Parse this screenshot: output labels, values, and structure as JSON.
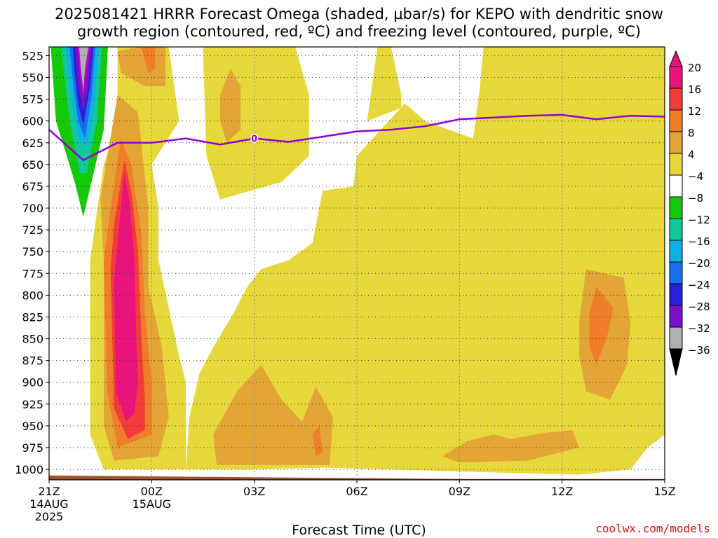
{
  "title_line1": "2025081421 HRRR Forecast Omega (shaded, μbar/s) for KEPO with dendritic snow",
  "title_line2": "growth region (contoured, red, ºC) and freezing level (contoured, purple, ºC)",
  "xlabel": "Forecast Time (UTC)",
  "credit": "coolwx.com/models",
  "colors": {
    "terrain": "#a0522d",
    "freezing_line": "#9400d3",
    "grid": "#555555"
  },
  "chart_data": {
    "type": "heatmap",
    "x_ticks": [
      {
        "hour": 0,
        "label": "21Z",
        "sub1": "14AUG",
        "sub2": "2025"
      },
      {
        "hour": 3,
        "label": "00Z",
        "sub1": "15AUG",
        "sub2": ""
      },
      {
        "hour": 6,
        "label": "03Z",
        "sub1": "",
        "sub2": ""
      },
      {
        "hour": 9,
        "label": "06Z",
        "sub1": "",
        "sub2": ""
      },
      {
        "hour": 12,
        "label": "09Z",
        "sub1": "",
        "sub2": ""
      },
      {
        "hour": 15,
        "label": "12Z",
        "sub1": "",
        "sub2": ""
      },
      {
        "hour": 18,
        "label": "15Z",
        "sub1": "",
        "sub2": ""
      }
    ],
    "xlim": [
      0,
      18
    ],
    "y_ticks": [
      525,
      550,
      575,
      600,
      625,
      650,
      675,
      700,
      725,
      750,
      775,
      800,
      825,
      850,
      875,
      900,
      925,
      950,
      975,
      1000
    ],
    "ylim": [
      515,
      1012
    ],
    "colorbar": [
      {
        "label": "20",
        "color": "#e8147c"
      },
      {
        "label": "16",
        "color": "#f23c3c"
      },
      {
        "label": "12",
        "color": "#f07d2a"
      },
      {
        "label": "8",
        "color": "#e3a535"
      },
      {
        "label": "4",
        "color": "#e6d83a"
      },
      {
        "label": "−4",
        "color": "#ffffff"
      },
      {
        "label": "−8",
        "color": "#14c80a"
      },
      {
        "label": "−12",
        "color": "#10c89a"
      },
      {
        "label": "−16",
        "color": "#10b0e6"
      },
      {
        "label": "−20",
        "color": "#1a6ef0"
      },
      {
        "label": "−24",
        "color": "#2a1fd8"
      },
      {
        "label": "−28",
        "color": "#7a10c8"
      },
      {
        "label": "−32",
        "color": "#b010c8"
      },
      {
        "label": "−36",
        "color": "#b0b0b0"
      }
    ],
    "freezing_level": {
      "label": "0",
      "points": [
        [
          0,
          610
        ],
        [
          1,
          645
        ],
        [
          2,
          625
        ],
        [
          3,
          625
        ],
        [
          4,
          620
        ],
        [
          5,
          627
        ],
        [
          6,
          620
        ],
        [
          7,
          624
        ],
        [
          8,
          618
        ],
        [
          9,
          612
        ],
        [
          10,
          610
        ],
        [
          11,
          606
        ],
        [
          12,
          598
        ],
        [
          13,
          596
        ],
        [
          14,
          594
        ],
        [
          15,
          593
        ],
        [
          16,
          598
        ],
        [
          17,
          594
        ],
        [
          18,
          595
        ]
      ]
    },
    "terrain": {
      "points": [
        [
          0,
          1007
        ],
        [
          3,
          1008
        ],
        [
          6,
          1009
        ],
        [
          9,
          1010
        ],
        [
          12,
          1011
        ],
        [
          15,
          1011
        ],
        [
          18,
          1011
        ]
      ]
    },
    "regions": [
      {
        "level": "4",
        "points": [
          [
            2,
            515
          ],
          [
            3.5,
            515
          ],
          [
            3.8,
            600
          ],
          [
            3.0,
            650
          ],
          [
            3.2,
            700
          ],
          [
            3.2,
            760
          ],
          [
            3.8,
            870
          ],
          [
            4.0,
            900
          ],
          [
            4.0,
            1000
          ],
          [
            1.6,
            1000
          ],
          [
            1.2,
            960
          ],
          [
            1.2,
            760
          ],
          [
            1.6,
            650
          ],
          [
            2.0,
            600
          ]
        ]
      },
      {
        "level": "4",
        "points": [
          [
            4.0,
            1000
          ],
          [
            4.1,
            940
          ],
          [
            4.4,
            890
          ],
          [
            4.8,
            860
          ],
          [
            5.4,
            820
          ],
          [
            5.8,
            790
          ],
          [
            6.2,
            770
          ],
          [
            7.0,
            760
          ],
          [
            7.7,
            740
          ],
          [
            8.0,
            680
          ],
          [
            8.9,
            675
          ],
          [
            9.0,
            640
          ],
          [
            10.4,
            580
          ],
          [
            11.0,
            600
          ],
          [
            12.4,
            620
          ],
          [
            12.6,
            560
          ],
          [
            12.7,
            515
          ],
          [
            18,
            515
          ],
          [
            18,
            960
          ],
          [
            17.5,
            975
          ],
          [
            17,
            1000
          ],
          [
            15.5,
            1006
          ],
          [
            12.5,
            1003
          ],
          [
            10,
            1000
          ],
          [
            8,
            998
          ],
          [
            6,
            1000
          ]
        ]
      },
      {
        "level": "4",
        "points": [
          [
            4.5,
            515
          ],
          [
            7.2,
            515
          ],
          [
            7.6,
            570
          ],
          [
            7.6,
            640
          ],
          [
            6.8,
            670
          ],
          [
            5.0,
            690
          ],
          [
            4.6,
            640
          ]
        ]
      },
      {
        "level": "4",
        "points": [
          [
            9.6,
            515
          ],
          [
            10.0,
            515
          ],
          [
            10.3,
            570
          ],
          [
            10.3,
            585
          ],
          [
            9.3,
            600
          ]
        ]
      },
      {
        "level": "8",
        "points": [
          [
            1.5,
            690
          ],
          [
            2.0,
            570
          ],
          [
            2.6,
            590
          ],
          [
            2.9,
            700
          ],
          [
            2.9,
            790
          ],
          [
            3.3,
            860
          ],
          [
            3.5,
            940
          ],
          [
            3.2,
            985
          ],
          [
            1.9,
            990
          ],
          [
            1.6,
            950
          ],
          [
            1.6,
            760
          ]
        ]
      },
      {
        "level": "12",
        "points": [
          [
            1.8,
            700
          ],
          [
            2.1,
            620
          ],
          [
            2.4,
            650
          ],
          [
            2.7,
            730
          ],
          [
            2.8,
            820
          ],
          [
            3.0,
            900
          ],
          [
            3.0,
            960
          ],
          [
            2.0,
            975
          ],
          [
            1.7,
            910
          ],
          [
            1.6,
            760
          ]
        ]
      },
      {
        "level": "16",
        "points": [
          [
            1.9,
            720
          ],
          [
            2.2,
            645
          ],
          [
            2.4,
            680
          ],
          [
            2.6,
            750
          ],
          [
            2.7,
            850
          ],
          [
            2.8,
            920
          ],
          [
            2.8,
            955
          ],
          [
            2.3,
            965
          ],
          [
            1.9,
            930
          ],
          [
            1.8,
            770
          ]
        ]
      },
      {
        "level": "20",
        "points": [
          [
            2.0,
            740
          ],
          [
            2.2,
            660
          ],
          [
            2.35,
            690
          ],
          [
            2.5,
            760
          ],
          [
            2.55,
            850
          ],
          [
            2.6,
            900
          ],
          [
            2.5,
            935
          ],
          [
            2.25,
            945
          ],
          [
            1.95,
            910
          ],
          [
            1.9,
            780
          ]
        ]
      },
      {
        "level": "8",
        "points": [
          [
            2.0,
            520
          ],
          [
            2.6,
            515
          ],
          [
            3.4,
            515
          ],
          [
            3.4,
            560
          ],
          [
            2.8,
            560
          ],
          [
            2.1,
            545
          ]
        ]
      },
      {
        "level": "12",
        "points": [
          [
            2.7,
            515
          ],
          [
            3.1,
            515
          ],
          [
            3.1,
            540
          ],
          [
            2.9,
            545
          ]
        ]
      },
      {
        "level": "8",
        "points": [
          [
            5.0,
            570
          ],
          [
            5.3,
            540
          ],
          [
            5.6,
            560
          ],
          [
            5.6,
            610
          ],
          [
            5.2,
            625
          ],
          [
            5.0,
            600
          ]
        ]
      },
      {
        "level": "8",
        "points": [
          [
            4.8,
            960
          ],
          [
            5.5,
            910
          ],
          [
            6.2,
            880
          ],
          [
            6.8,
            920
          ],
          [
            7.4,
            945
          ],
          [
            7.8,
            905
          ],
          [
            8.3,
            940
          ],
          [
            8.2,
            995
          ],
          [
            4.9,
            995
          ]
        ]
      },
      {
        "level": "12",
        "points": [
          [
            7.7,
            960
          ],
          [
            7.9,
            950
          ],
          [
            8.0,
            980
          ],
          [
            7.8,
            985
          ]
        ]
      },
      {
        "level": "8",
        "points": [
          [
            15.5,
            830
          ],
          [
            15.7,
            770
          ],
          [
            16.8,
            780
          ],
          [
            17.0,
            830
          ],
          [
            16.9,
            880
          ],
          [
            16.4,
            920
          ],
          [
            15.7,
            910
          ],
          [
            15.5,
            870
          ]
        ]
      },
      {
        "level": "12",
        "points": [
          [
            15.8,
            820
          ],
          [
            16.0,
            790
          ],
          [
            16.5,
            815
          ],
          [
            16.3,
            850
          ],
          [
            16.0,
            880
          ],
          [
            15.8,
            860
          ]
        ]
      },
      {
        "level": "8",
        "points": [
          [
            11.5,
            985
          ],
          [
            12.2,
            968
          ],
          [
            13.0,
            960
          ],
          [
            13.5,
            965
          ],
          [
            14.5,
            958
          ],
          [
            15.3,
            955
          ],
          [
            15.5,
            975
          ],
          [
            14.0,
            990
          ],
          [
            12.0,
            992
          ]
        ]
      },
      {
        "level": "−8",
        "points": [
          [
            0.05,
            515
          ],
          [
            1.72,
            515
          ],
          [
            1.6,
            610
          ],
          [
            1.3,
            660
          ],
          [
            1.0,
            710
          ],
          [
            0.75,
            670
          ],
          [
            0.2,
            600
          ]
        ]
      },
      {
        "level": "−12",
        "points": [
          [
            0.35,
            515
          ],
          [
            1.55,
            515
          ],
          [
            1.4,
            600
          ],
          [
            1.1,
            660
          ],
          [
            0.9,
            660
          ],
          [
            0.6,
            600
          ]
        ]
      },
      {
        "level": "−16",
        "points": [
          [
            0.5,
            515
          ],
          [
            1.45,
            515
          ],
          [
            1.3,
            590
          ],
          [
            1.1,
            630
          ],
          [
            0.85,
            620
          ],
          [
            0.6,
            560
          ]
        ]
      },
      {
        "level": "−20",
        "points": [
          [
            0.6,
            515
          ],
          [
            1.35,
            515
          ],
          [
            1.25,
            570
          ],
          [
            1.05,
            620
          ],
          [
            0.85,
            600
          ],
          [
            0.7,
            555
          ]
        ]
      },
      {
        "level": "−24",
        "points": [
          [
            0.7,
            515
          ],
          [
            1.3,
            515
          ],
          [
            1.2,
            560
          ],
          [
            1.0,
            605
          ],
          [
            0.85,
            580
          ],
          [
            0.75,
            545
          ]
        ]
      },
      {
        "level": "−28",
        "points": [
          [
            0.75,
            515
          ],
          [
            1.25,
            515
          ],
          [
            1.15,
            560
          ],
          [
            1.0,
            590
          ],
          [
            0.85,
            560
          ],
          [
            0.8,
            535
          ]
        ]
      },
      {
        "level": "−32",
        "points": [
          [
            0.83,
            515
          ],
          [
            1.2,
            515
          ],
          [
            1.1,
            545
          ],
          [
            1.0,
            575
          ],
          [
            0.9,
            548
          ]
        ]
      },
      {
        "level": "−36",
        "points": [
          [
            0.88,
            515
          ],
          [
            1.15,
            515
          ],
          [
            1.05,
            540
          ],
          [
            1.0,
            565
          ],
          [
            0.93,
            540
          ]
        ]
      }
    ]
  }
}
